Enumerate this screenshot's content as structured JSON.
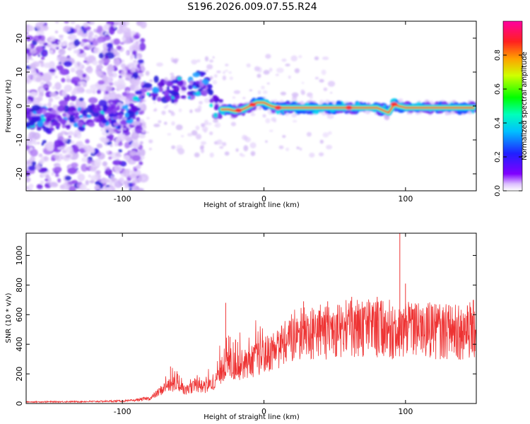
{
  "title": "S196.2026.009.07.55.R24",
  "chart_data": [
    {
      "type": "heatmap",
      "xlabel": "Height of straight line (km)",
      "ylabel": "Frequency (Hz)",
      "xlim": [
        -168,
        150
      ],
      "ylim": [
        -25,
        25
      ],
      "xticks": [
        -100,
        0,
        100
      ],
      "yticks": [
        -20,
        -10,
        0,
        10,
        20
      ],
      "colorbar": {
        "label": "Normalized spectral amplitude",
        "range": [
          0,
          1
        ],
        "ticks": [
          0.0,
          0.2,
          0.4,
          0.6,
          0.8
        ]
      },
      "ridge_x": [
        -168,
        -150,
        -130,
        -110,
        -95,
        -85,
        -75,
        -65,
        -58,
        -52,
        -45,
        -40,
        -35,
        -30,
        -25,
        -20,
        -15,
        -10,
        -5,
        0,
        5,
        10,
        20,
        40,
        60,
        80,
        88,
        92,
        95,
        100,
        120,
        148
      ],
      "ridge_y": [
        -3.5,
        -4,
        -3.5,
        -3,
        -3,
        4,
        5,
        4,
        6,
        5,
        7,
        6,
        0,
        -1,
        -1,
        -1.5,
        -1,
        0,
        1,
        1,
        0,
        -0.5,
        -0.5,
        -0.5,
        -0.5,
        -0.5,
        -2,
        0.5,
        0,
        -0.5,
        -0.5,
        -0.5
      ]
    },
    {
      "type": "line",
      "xlabel": "Height of straight line (km)",
      "ylabel": "SNR (10 * v/v)",
      "xlim": [
        -168,
        150
      ],
      "ylim": [
        0,
        1150
      ],
      "xticks": [
        -100,
        0,
        100
      ],
      "yticks": [
        0,
        200,
        400,
        600,
        800,
        1000
      ],
      "color": "#ee3333",
      "envelope_x": [
        -168,
        -120,
        -95,
        -80,
        -70,
        -62,
        -55,
        -48,
        -42,
        -35,
        -28,
        -20,
        -12,
        -5,
        0,
        10,
        20,
        30,
        40,
        50,
        60,
        70,
        80,
        90,
        95,
        100,
        110,
        120,
        130,
        140,
        150
      ],
      "envelope_y": [
        12,
        15,
        20,
        40,
        120,
        150,
        100,
        140,
        120,
        150,
        280,
        280,
        300,
        330,
        360,
        420,
        470,
        510,
        520,
        540,
        550,
        555,
        560,
        540,
        480,
        550,
        545,
        540,
        540,
        535,
        540
      ],
      "peaks": [
        {
          "x": -66,
          "y": 250
        },
        {
          "x": -61,
          "y": 200
        },
        {
          "x": -27,
          "y": 680
        },
        {
          "x": -24,
          "y": 450
        },
        {
          "x": -20,
          "y": 430
        },
        {
          "x": 28,
          "y": 690
        },
        {
          "x": 45,
          "y": 690
        },
        {
          "x": 62,
          "y": 720
        },
        {
          "x": 80,
          "y": 720
        },
        {
          "x": 96,
          "y": 1150
        },
        {
          "x": 97,
          "y": 220
        },
        {
          "x": 100,
          "y": 810
        },
        {
          "x": 148,
          "y": 700
        }
      ]
    }
  ]
}
